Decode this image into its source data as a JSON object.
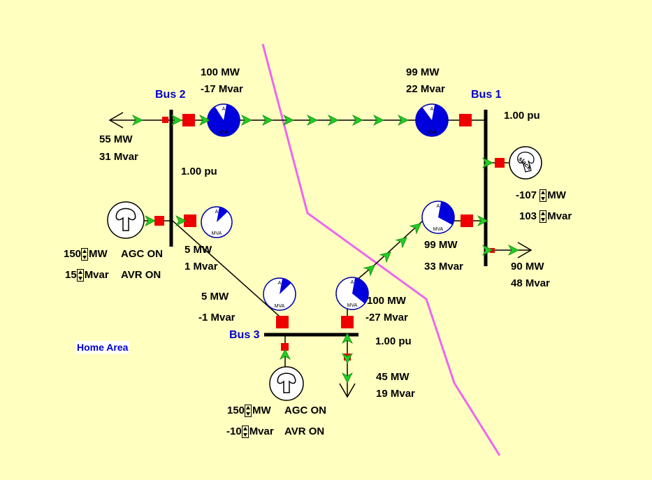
{
  "buses": {
    "bus1": {
      "name": "Bus 1",
      "voltage": "1.00 pu"
    },
    "bus2": {
      "name": "Bus 2",
      "voltage": "1.00 pu"
    },
    "bus3": {
      "name": "Bus 3",
      "voltage": "1.00 pu"
    }
  },
  "area_label": "Home Area",
  "flows": {
    "line12_bus2_mw": "100 MW",
    "line12_bus2_mvar": "-17 Mvar",
    "line12_bus1_mw": "99 MW",
    "line12_bus1_mvar": "22 Mvar",
    "line23_bus2_mw": "5 MW",
    "line23_bus2_mvar": "1 Mvar",
    "line23_bus3_mw": "5 MW",
    "line23_bus3_mvar": "-1 Mvar",
    "line13_bus3_mw": "100 MW",
    "line13_bus3_mvar": "-27 Mvar",
    "line13_bus1_mw": "99 MW",
    "line13_bus1_mvar": "33 Mvar"
  },
  "loads": {
    "bus2": {
      "mw": "55 MW",
      "mvar": "31 Mvar"
    },
    "bus1": {
      "mw": "90 MW",
      "mvar": "48 Mvar"
    },
    "bus3": {
      "mw": "45 MW",
      "mvar": "19 Mvar"
    }
  },
  "generators": {
    "bus1_slack": {
      "mw": "-107",
      "mw_unit": "MW",
      "mvar": "103",
      "mvar_unit": "Mvar",
      "icon_text": "slack"
    },
    "bus2": {
      "mw": "150",
      "mw_unit": "MW",
      "mvar": "15",
      "mvar_unit": "Mvar",
      "agc": "AGC ON",
      "avr": "AVR ON"
    },
    "bus3": {
      "mw": "150",
      "mw_unit": "MW",
      "mvar": "-10",
      "mvar_unit": "Mvar",
      "agc": "AGC ON",
      "avr": "AVR ON"
    }
  },
  "pie_charts": {
    "unit_top": "A",
    "unit_bottom": "MVA",
    "line12_bus2_loading": 0.88,
    "line12_bus1_loading": 0.87,
    "line23_bus2_loading": 0.1,
    "line23_bus3_loading": 0.1,
    "line13_bus3_loading": 0.33,
    "line13_bus1_loading": 0.3
  },
  "colors": {
    "background": "#ffffc0",
    "bus_label": "#0000cc",
    "breaker": "#ee0000",
    "flow_arrow": "#22cc22",
    "pie_fill": "#0000dd",
    "area_boundary": "#ee66ee"
  }
}
